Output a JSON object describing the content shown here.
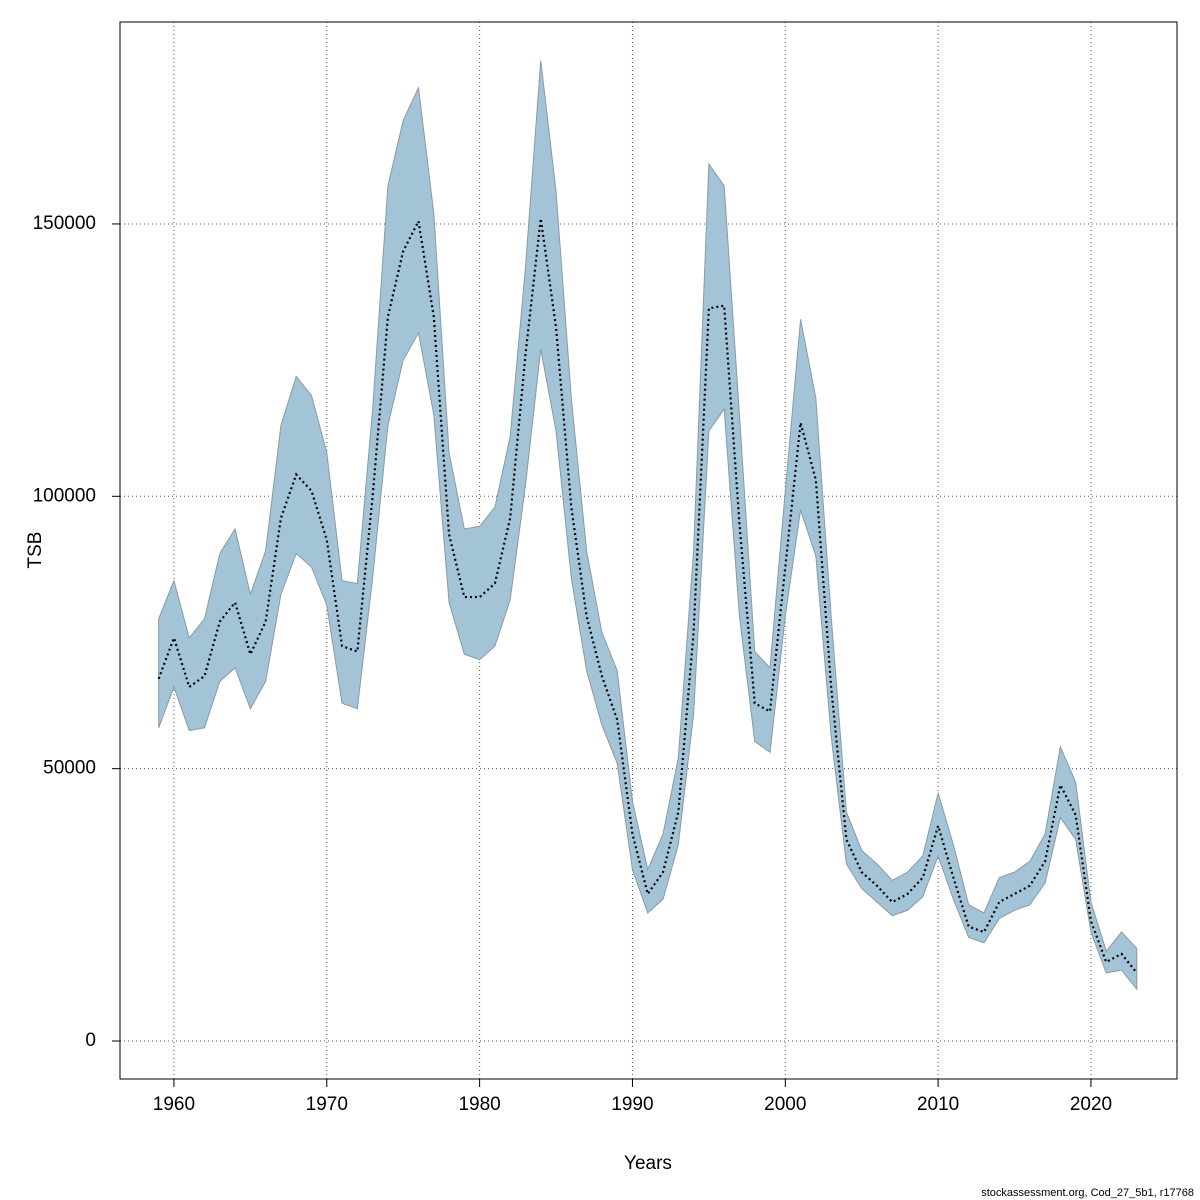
{
  "chart_data": {
    "type": "band-line",
    "xlabel": "Years",
    "ylabel": "TSB",
    "footer": "stockassessment.org, Cod_27_5b1, r17768",
    "x": [
      1959,
      1960,
      1961,
      1962,
      1963,
      1964,
      1965,
      1966,
      1967,
      1968,
      1969,
      1970,
      1971,
      1972,
      1973,
      1974,
      1975,
      1976,
      1977,
      1978,
      1979,
      1980,
      1981,
      1982,
      1983,
      1984,
      1985,
      1986,
      1987,
      1988,
      1989,
      1990,
      1991,
      1992,
      1993,
      1994,
      1995,
      1996,
      1997,
      1998,
      1999,
      2000,
      2001,
      2002,
      2003,
      2004,
      2005,
      2006,
      2007,
      2008,
      2009,
      2010,
      2011,
      2012,
      2013,
      2014,
      2015,
      2016,
      2017,
      2018,
      2019,
      2020,
      2021,
      2022,
      2023
    ],
    "values": [
      66500,
      74000,
      65000,
      67000,
      77000,
      80500,
      71000,
      77000,
      96000,
      104000,
      101000,
      92000,
      72500,
      71500,
      100000,
      133000,
      145000,
      150500,
      133000,
      93000,
      81500,
      81500,
      84000,
      96000,
      126000,
      151000,
      131000,
      98000,
      78000,
      67000,
      59000,
      38000,
      27000,
      31000,
      42000,
      75000,
      134500,
      135000,
      95000,
      62000,
      60500,
      87000,
      113500,
      103000,
      65000,
      37000,
      31000,
      28500,
      25500,
      27000,
      30000,
      39500,
      30000,
      21000,
      20000,
      25500,
      27000,
      28500,
      33000,
      47000,
      41500,
      22000,
      14500,
      16000,
      12500
    ],
    "lower": [
      57500,
      65000,
      57000,
      57500,
      66000,
      68500,
      61000,
      66000,
      82000,
      89500,
      87000,
      80000,
      62000,
      61000,
      85000,
      113000,
      125000,
      130000,
      115000,
      80500,
      71000,
      70000,
      72500,
      81000,
      102000,
      127000,
      112000,
      85000,
      68000,
      58000,
      51000,
      31500,
      23500,
      26000,
      36000,
      60000,
      112000,
      116000,
      78000,
      55000,
      53000,
      78000,
      97500,
      89000,
      56000,
      32500,
      28000,
      25500,
      23000,
      24000,
      26500,
      34000,
      26000,
      19000,
      18000,
      22500,
      24000,
      25000,
      29000,
      41000,
      37000,
      20000,
      12500,
      13000,
      9500
    ],
    "upper": [
      77500,
      84500,
      74000,
      77500,
      89500,
      94000,
      82000,
      90000,
      113000,
      122000,
      118500,
      108000,
      84500,
      84000,
      116000,
      157000,
      169000,
      175000,
      152000,
      108000,
      94000,
      94500,
      98000,
      111000,
      142000,
      180000,
      156000,
      118000,
      90000,
      75000,
      68000,
      44000,
      31500,
      38000,
      52000,
      90000,
      161000,
      157000,
      115000,
      71500,
      68500,
      101000,
      132500,
      118000,
      78000,
      42000,
      35000,
      32500,
      29500,
      31000,
      34000,
      45500,
      36000,
      25000,
      23500,
      30000,
      31000,
      33000,
      38000,
      54000,
      47500,
      25500,
      16500,
      20000,
      17000
    ],
    "band_color": "#a3c4d6",
    "line_color": "#000000",
    "xlim": [
      1956.47,
      2025.63
    ],
    "ylim": [
      -6976,
      187075
    ],
    "xticks": [
      1960,
      1970,
      1980,
      1990,
      2000,
      2010,
      2020
    ],
    "yticks": [
      0,
      50000,
      100000,
      150000
    ],
    "grid": true
  }
}
